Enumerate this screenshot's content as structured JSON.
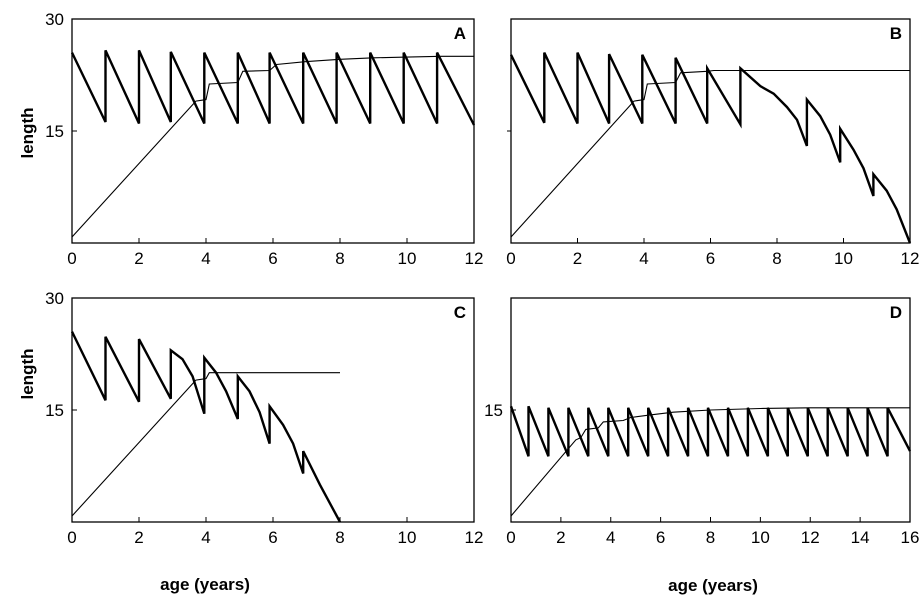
{
  "figure": {
    "y_axis_title": "length",
    "x_axis_title": "age (years)"
  },
  "chart_data": [
    {
      "type": "line",
      "panel": "A",
      "xlim": [
        0,
        12
      ],
      "ylim": [
        0,
        30
      ],
      "x_ticks": [
        "0",
        "2",
        "4",
        "6",
        "8",
        "10",
        "12"
      ],
      "y_ticks": [
        "15",
        "30"
      ],
      "series": [
        {
          "style": "thick",
          "x": [
            0,
            1,
            1,
            2,
            2,
            2.95,
            2.95,
            3.95,
            3.95,
            4.95,
            4.95,
            5.9,
            5.9,
            6.9,
            6.9,
            7.9,
            7.9,
            8.9,
            8.9,
            9.9,
            9.9,
            10.9,
            10.9,
            12
          ],
          "y": [
            25.5,
            16.2,
            25.8,
            16.0,
            25.8,
            16.2,
            25.6,
            16.0,
            25.5,
            16.0,
            25.5,
            16.0,
            25.5,
            16.0,
            25.5,
            16.0,
            25.5,
            16.0,
            25.5,
            16.0,
            25.5,
            16.0,
            25.5,
            15.8
          ]
        },
        {
          "style": "thin",
          "x": [
            0,
            3.7,
            4.0,
            4.1,
            4.95,
            5.1,
            5.9,
            6.1,
            7,
            8,
            9,
            10,
            11,
            12
          ],
          "y": [
            0.8,
            19.0,
            19.2,
            21.3,
            21.5,
            23.0,
            23.1,
            23.9,
            24.3,
            24.6,
            24.8,
            24.9,
            25.0,
            25.0
          ]
        }
      ]
    },
    {
      "type": "line",
      "panel": "B",
      "xlim": [
        0,
        12
      ],
      "ylim": [
        0,
        30
      ],
      "x_ticks": [
        "0",
        "2",
        "4",
        "6",
        "8",
        "10",
        "12"
      ],
      "y_ticks": [],
      "series": [
        {
          "style": "thick",
          "x": [
            0,
            1,
            1,
            2,
            2,
            2.95,
            2.95,
            3.95,
            3.95,
            4.95,
            4.95,
            5.9,
            5.9,
            6.9,
            6.9,
            7.5,
            7.9,
            8.3,
            8.6,
            8.9,
            8.9,
            9.3,
            9.6,
            9.9,
            9.9,
            10.3,
            10.6,
            10.9,
            10.9,
            11.3,
            11.6,
            12
          ],
          "y": [
            25.2,
            16.1,
            25.5,
            16.0,
            25.5,
            16.0,
            25.3,
            16.0,
            25.2,
            16.0,
            24.8,
            16.0,
            23.4,
            15.9,
            23.4,
            21.0,
            20.0,
            18.2,
            16.5,
            13.0,
            19.2,
            17.0,
            14.5,
            10.8,
            15.3,
            12.5,
            10.0,
            6.3,
            9.2,
            7.0,
            4.5,
            0
          ]
        },
        {
          "style": "thin",
          "x": [
            0,
            3.7,
            4.0,
            4.1,
            4.95,
            5.1,
            5.9,
            6.1,
            7,
            12
          ],
          "y": [
            0.8,
            19.0,
            19.2,
            21.3,
            21.5,
            22.8,
            23.0,
            23.1,
            23.1,
            23.1
          ]
        }
      ]
    },
    {
      "type": "line",
      "panel": "C",
      "xlim": [
        0,
        12
      ],
      "ylim": [
        0,
        30
      ],
      "x_ticks": [
        "0",
        "2",
        "4",
        "6",
        "8",
        "10",
        "12"
      ],
      "y_ticks": [
        "15",
        "30"
      ],
      "series": [
        {
          "style": "thick",
          "x": [
            0,
            1,
            1,
            2,
            2,
            2.95,
            2.95,
            3.3,
            3.6,
            3.95,
            3.95,
            4.3,
            4.6,
            4.95,
            4.95,
            5.3,
            5.6,
            5.9,
            5.9,
            6.3,
            6.6,
            6.9,
            6.9,
            7.4,
            8
          ],
          "y": [
            25.5,
            16.3,
            24.8,
            16.1,
            24.5,
            16.5,
            23.0,
            21.8,
            19.5,
            14.5,
            22.0,
            20.0,
            17.5,
            13.8,
            19.5,
            17.5,
            14.7,
            10.5,
            15.5,
            13.0,
            10.5,
            6.5,
            9.5,
            5.0,
            0
          ]
        },
        {
          "style": "thin",
          "x": [
            0,
            3.7,
            4.0,
            4.1,
            4.5,
            8
          ],
          "y": [
            0.8,
            19.0,
            19.2,
            20.0,
            20.0,
            20.0
          ]
        }
      ]
    },
    {
      "type": "line",
      "panel": "D",
      "xlim": [
        0,
        16
      ],
      "ylim": [
        0,
        30
      ],
      "x_ticks": [
        "0",
        "2",
        "4",
        "6",
        "8",
        "10",
        "12",
        "14",
        "16"
      ],
      "y_ticks": [
        "15"
      ],
      "series": [
        {
          "style": "thick",
          "x": [
            0,
            0.7,
            0.7,
            1.5,
            1.5,
            2.3,
            2.3,
            3.1,
            3.1,
            3.9,
            3.9,
            4.7,
            4.7,
            5.5,
            5.5,
            6.3,
            6.3,
            7.1,
            7.1,
            7.9,
            7.9,
            8.7,
            8.7,
            9.5,
            9.5,
            10.3,
            10.3,
            11.1,
            11.1,
            11.9,
            11.9,
            12.7,
            12.7,
            13.5,
            13.5,
            14.3,
            14.3,
            15.1,
            15.1,
            16
          ],
          "y": [
            15.5,
            8.8,
            15.5,
            8.8,
            15.3,
            8.8,
            15.3,
            8.8,
            15.3,
            8.8,
            15.3,
            8.8,
            15.3,
            8.8,
            15.3,
            8.8,
            15.3,
            8.8,
            15.3,
            8.8,
            15.3,
            8.8,
            15.3,
            8.8,
            15.3,
            8.8,
            15.3,
            8.8,
            15.3,
            8.8,
            15.3,
            8.8,
            15.3,
            8.8,
            15.3,
            8.8,
            15.3,
            8.8,
            15.3,
            9.5
          ]
        },
        {
          "style": "thin",
          "x": [
            0,
            2.6,
            2.8,
            3.0,
            3.5,
            3.7,
            4.5,
            4.8,
            5.5,
            6.5,
            8,
            10,
            12,
            14,
            16
          ],
          "y": [
            0.8,
            11.0,
            11.3,
            12.4,
            12.6,
            13.4,
            13.6,
            14.0,
            14.3,
            14.7,
            15.0,
            15.2,
            15.3,
            15.3,
            15.3
          ]
        }
      ]
    }
  ]
}
